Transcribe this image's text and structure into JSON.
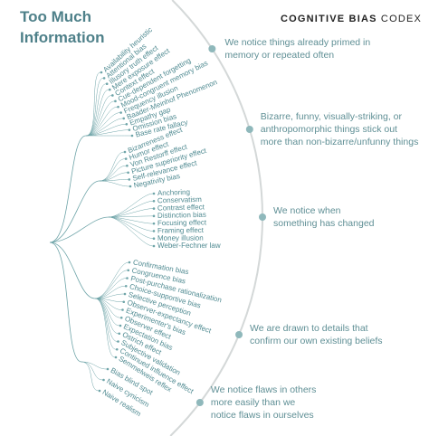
{
  "title_lines": [
    "Too Much",
    "Information"
  ],
  "brand": {
    "bold": "COGNITIVE BIAS",
    "light": "CODEX"
  },
  "groups": [
    {
      "description_lines": [
        "We notice things already primed in",
        "memory or repeated often"
      ],
      "biases": [
        "Availability heuristic",
        "Attentional bias",
        "Illusory truth effect",
        "Mere exposure effect",
        "Context effect",
        "Cue-dependent forgetting",
        "Mood-congruent memory bias",
        "Frequency illusion",
        "Baader-Meinhof Phenomenon",
        "Empathy gap",
        "Omission bias",
        "Base rate fallacy"
      ]
    },
    {
      "description_lines": [
        "Bizarre, funny, visually-striking, or",
        "anthropomorphic things stick out",
        "more than non-bizarre/unfunny things"
      ],
      "biases": [
        "Bizarreness effect",
        "Humor effect",
        "Von Restorff effect",
        "Picture superiority effect",
        "Self-relevance effect",
        "Negativity bias"
      ]
    },
    {
      "description_lines": [
        "We notice when",
        "something has changed"
      ],
      "biases": [
        "Anchoring",
        "Conservatism",
        "Contrast effect",
        "Distinction bias",
        "Focusing effect",
        "Framing effect",
        "Money illusion",
        "Weber-Fechner law"
      ]
    },
    {
      "description_lines": [
        "We are drawn to details that",
        "confirm our own existing beliefs"
      ],
      "biases": [
        "Confirmation bias",
        "Congruence bias",
        "Post-purchase rationalization",
        "Choice-supportive bias",
        "Selective perception",
        "Observer-expectancy effect",
        "Experimenter's bias",
        "Observer effect",
        "Expectation bias",
        "Ostrich effect",
        "Subjective validation",
        "Continued influence effect",
        "Semmelweis reflex"
      ]
    },
    {
      "description_lines": [
        "We notice flaws in others",
        "more easily than we",
        "notice flaws in ourselves"
      ],
      "biases": [
        "Bias blind spot",
        "Naive cynicism",
        "Naive realism"
      ]
    }
  ]
}
